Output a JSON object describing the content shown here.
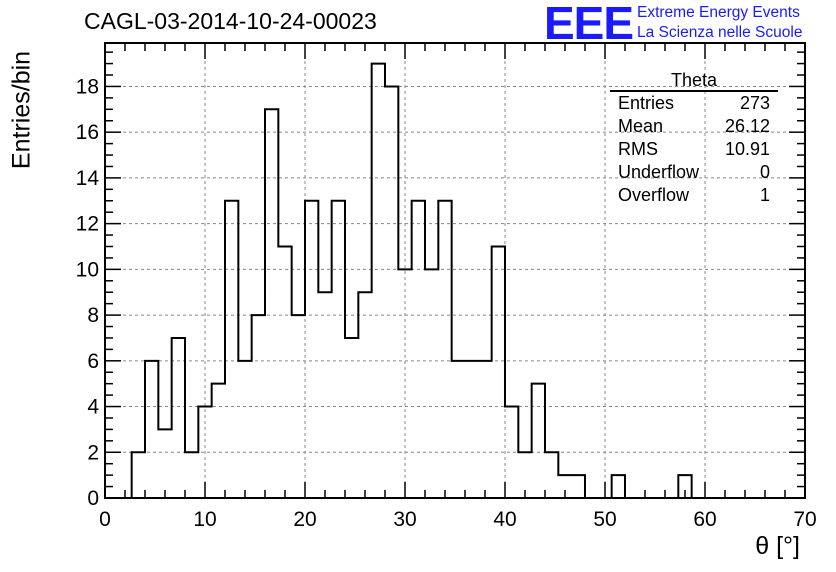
{
  "title": "CAGL-03-2014-10-24-00023",
  "logo": {
    "mark": "EEE",
    "line1": "Extreme Energy Events",
    "line2": "La Scienza nelle Scuole",
    "color": "#1a1aff"
  },
  "axes": {
    "xlabel": "θ [°]",
    "ylabel": "Entries/bin"
  },
  "stats": {
    "name": "Theta",
    "rows": [
      {
        "label": "Entries",
        "value": "273"
      },
      {
        "label": "Mean",
        "value": "26.12"
      },
      {
        "label": "RMS",
        "value": "10.91"
      },
      {
        "label": "Underflow",
        "value": "0"
      },
      {
        "label": "Overflow",
        "value": "1"
      }
    ]
  },
  "chart_data": {
    "type": "histogram",
    "bin_width": 1.3333,
    "bin_start": 0,
    "bin_counts": [
      0,
      0,
      2,
      6,
      3,
      7,
      2,
      4,
      5,
      13,
      6,
      8,
      17,
      11,
      8,
      13,
      9,
      13,
      7,
      9,
      19,
      18,
      10,
      13,
      10,
      13,
      6,
      6,
      6,
      11,
      4,
      2,
      5,
      2,
      1,
      1,
      0,
      0,
      1,
      0,
      0,
      0,
      0,
      1,
      0,
      0,
      0,
      0,
      0,
      0,
      0,
      0
    ],
    "xlim": [
      0,
      70
    ],
    "ylim": [
      0,
      19.9
    ],
    "x_ticks": [
      0,
      10,
      20,
      30,
      40,
      50,
      60,
      70
    ],
    "y_ticks": [
      0,
      2,
      4,
      6,
      8,
      10,
      12,
      14,
      16,
      18
    ],
    "grid": true,
    "line_color": "#000000"
  }
}
